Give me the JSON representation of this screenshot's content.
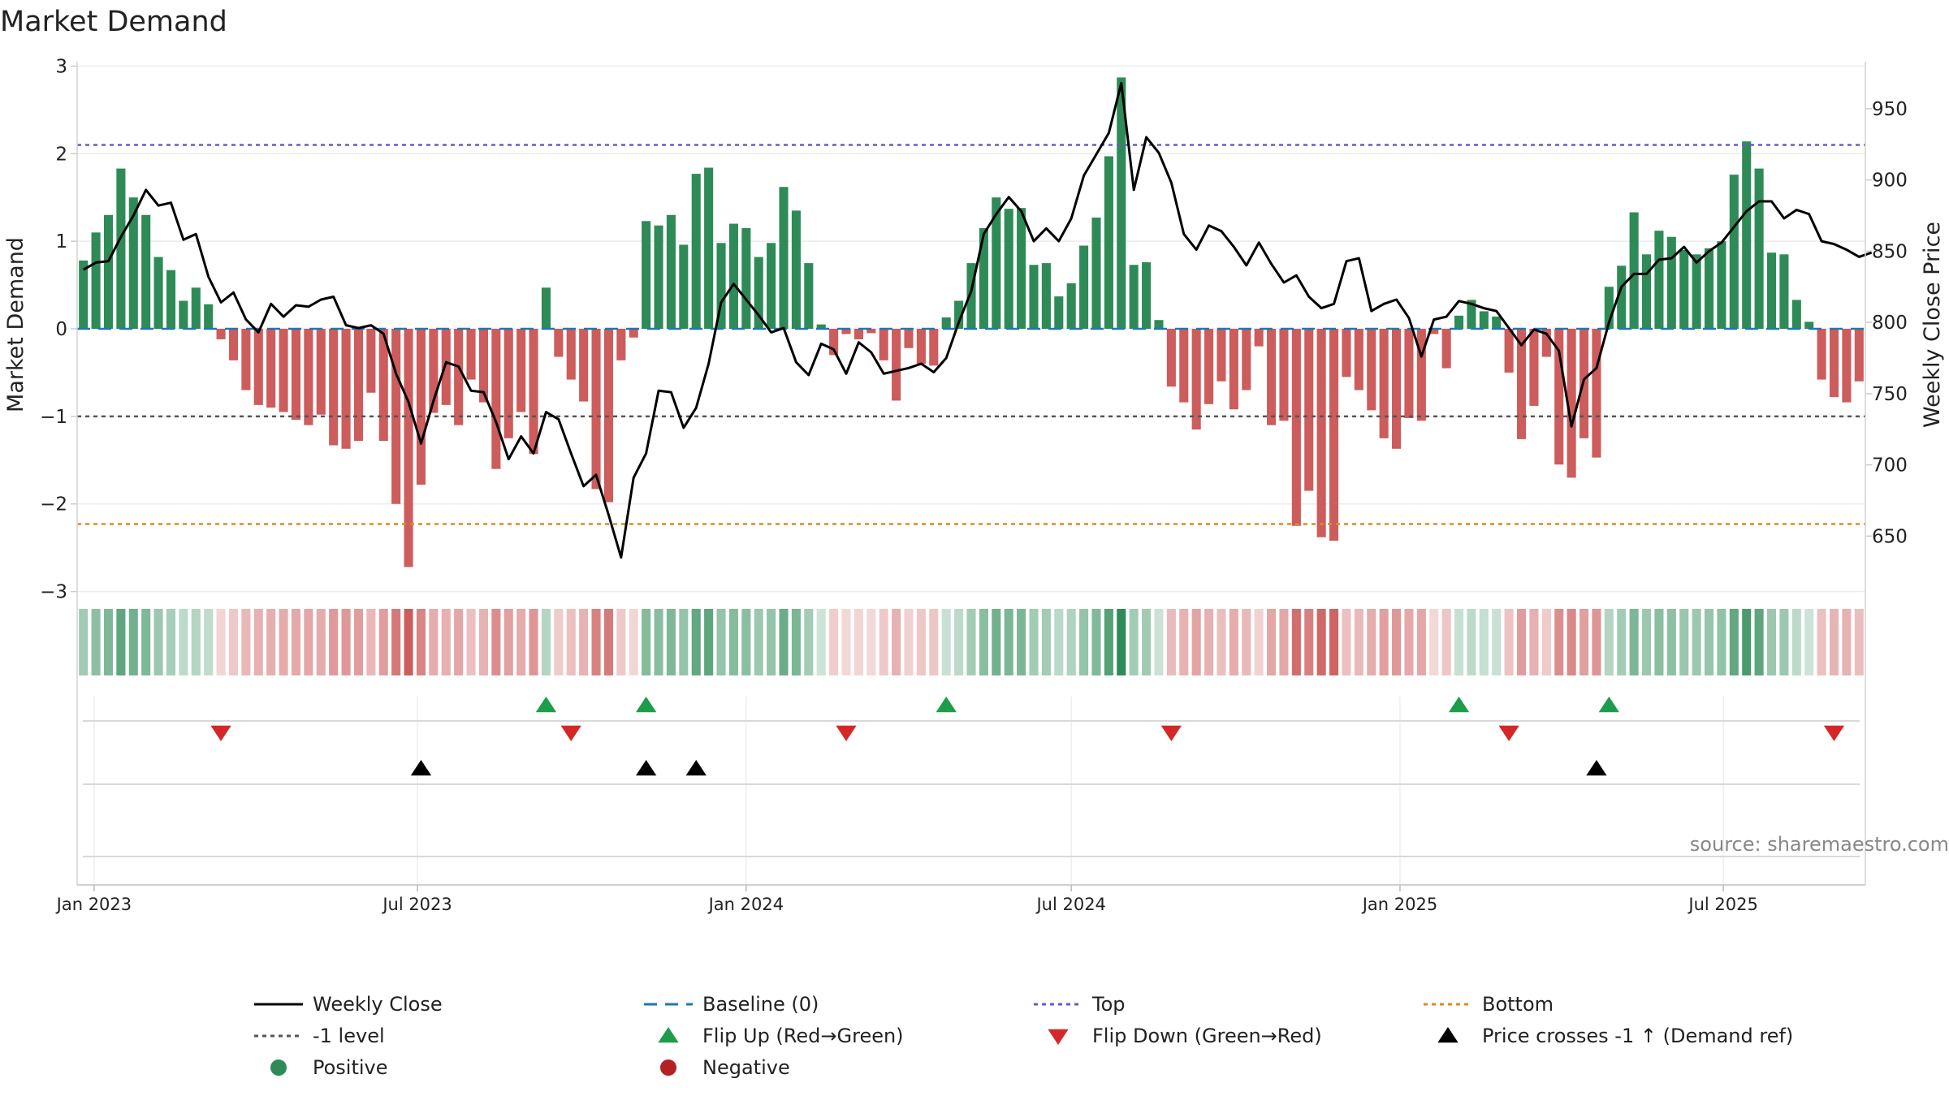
{
  "chart_data": {
    "type": "bar",
    "title": "Market Demand",
    "ylabel": "Market Demand",
    "y2label": "Weekly Close Price",
    "ylim": [
      -3.05,
      3.05
    ],
    "y2lim": [
      608,
      983
    ],
    "yticks": [
      "3",
      "2",
      "1",
      "0",
      "−1",
      "−2",
      "−3"
    ],
    "y2ticks": [
      "950",
      "900",
      "850",
      "800",
      "750",
      "700",
      "650"
    ],
    "xticks": [
      "Jan 2023",
      "Jul 2023",
      "Jan 2024",
      "Jul 2024",
      "Jan 2025",
      "Jul 2025"
    ],
    "x_start": "2022-12-26",
    "x_step_days": 7,
    "reference_lines": {
      "top": 2.1,
      "minus_one": -1.0,
      "bottom": -2.23,
      "baseline": 0
    },
    "colors": {
      "positive": "#2e8b57",
      "negative": "#cd5c5c",
      "close": "#000000",
      "top": "#6a5acd",
      "minus_one": "#555555",
      "bottom": "#e08a1e",
      "baseline": "#1f77b4",
      "flip_up": "#1e9c4a",
      "flip_down": "#d62728",
      "price_cross": "#000000",
      "source": "#888888"
    },
    "series": [
      {
        "name": "Market Demand",
        "values": [
          0.78,
          1.1,
          1.3,
          1.83,
          1.5,
          1.3,
          0.82,
          0.67,
          0.32,
          0.47,
          0.28,
          -0.12,
          -0.36,
          -0.7,
          -0.87,
          -0.9,
          -0.95,
          -1.04,
          -1.1,
          -0.98,
          -1.33,
          -1.37,
          -1.28,
          -0.73,
          -1.28,
          -2.0,
          -2.72,
          -1.78,
          -0.96,
          -0.87,
          -1.1,
          -0.58,
          -0.84,
          -1.6,
          -1.25,
          -0.95,
          -1.43,
          0.47,
          -0.32,
          -0.58,
          -0.83,
          -1.83,
          -1.98,
          -0.36,
          -0.1,
          1.23,
          1.18,
          1.3,
          0.96,
          1.77,
          1.84,
          0.98,
          1.2,
          1.15,
          0.82,
          0.98,
          1.62,
          1.35,
          0.75,
          0.05,
          -0.3,
          -0.06,
          -0.12,
          -0.05,
          -0.36,
          -0.82,
          -0.22,
          -0.4,
          -0.42,
          0.13,
          0.32,
          0.75,
          1.15,
          1.5,
          1.37,
          1.38,
          0.73,
          0.75,
          0.37,
          0.52,
          0.95,
          1.27,
          1.97,
          2.87,
          0.73,
          0.76,
          0.1,
          -0.66,
          -0.84,
          -1.15,
          -0.86,
          -0.6,
          -0.92,
          -0.7,
          -0.2,
          -1.1,
          -1.05,
          -2.25,
          -1.85,
          -2.38,
          -2.42,
          -0.55,
          -0.7,
          -0.93,
          -1.25,
          -1.37,
          -1.02,
          -1.05,
          -0.06,
          -0.45,
          0.15,
          0.33,
          0.2,
          0.14,
          -0.5,
          -1.26,
          -0.88,
          -0.32,
          -1.55,
          -1.7,
          -1.25,
          -1.47,
          0.48,
          0.72,
          1.33,
          0.85,
          1.12,
          1.05,
          0.9,
          0.85,
          0.92,
          1.0,
          1.76,
          2.14,
          1.83,
          0.87,
          0.85,
          0.33,
          0.08,
          -0.58,
          -0.78,
          -0.84,
          -0.6
        ]
      },
      {
        "name": "Weekly Close",
        "values": [
          837,
          842,
          843,
          860,
          875,
          893,
          882,
          884,
          858,
          862,
          832,
          814,
          821,
          802,
          793,
          813,
          804,
          812,
          811,
          816,
          818,
          798,
          796,
          798,
          792,
          764,
          744,
          715,
          745,
          772,
          769,
          752,
          751,
          730,
          704,
          720,
          708,
          737,
          732,
          708,
          685,
          693,
          665,
          635,
          691,
          708,
          752,
          751,
          726,
          740,
          771,
          814,
          827,
          816,
          805,
          793,
          796,
          772,
          763,
          785,
          781,
          764,
          786,
          779,
          764,
          766,
          768,
          771,
          765,
          775,
          800,
          822,
          862,
          876,
          888,
          878,
          857,
          866,
          857,
          873,
          903,
          918,
          933,
          968,
          893,
          930,
          919,
          898,
          862,
          851,
          868,
          864,
          853,
          840,
          856,
          841,
          828,
          833,
          818,
          810,
          813,
          843,
          845,
          808,
          813,
          816,
          803,
          776,
          802,
          804,
          815,
          813,
          810,
          808,
          796,
          784,
          795,
          792,
          780,
          727,
          760,
          768,
          800,
          825,
          834,
          834,
          844,
          845,
          853,
          842,
          850,
          856,
          867,
          878,
          885,
          885,
          873,
          879,
          876,
          857,
          855,
          851,
          846,
          849
        ]
      }
    ],
    "flip_up_indices": [
      37,
      45,
      69,
      110,
      122
    ],
    "flip_down_indices": [
      11,
      39,
      61,
      87,
      114,
      140
    ],
    "price_cross_indices": [
      27,
      45,
      49,
      121
    ],
    "legend": [
      "Weekly Close",
      "Baseline (0)",
      "Top",
      "Bottom",
      "-1 level",
      "Flip Up (Red→Green)",
      "Flip Down (Green→Red)",
      "Price crosses -1 ↑ (Demand ref)",
      "Positive",
      "Negative"
    ],
    "source": "source: sharemaestro.com"
  }
}
